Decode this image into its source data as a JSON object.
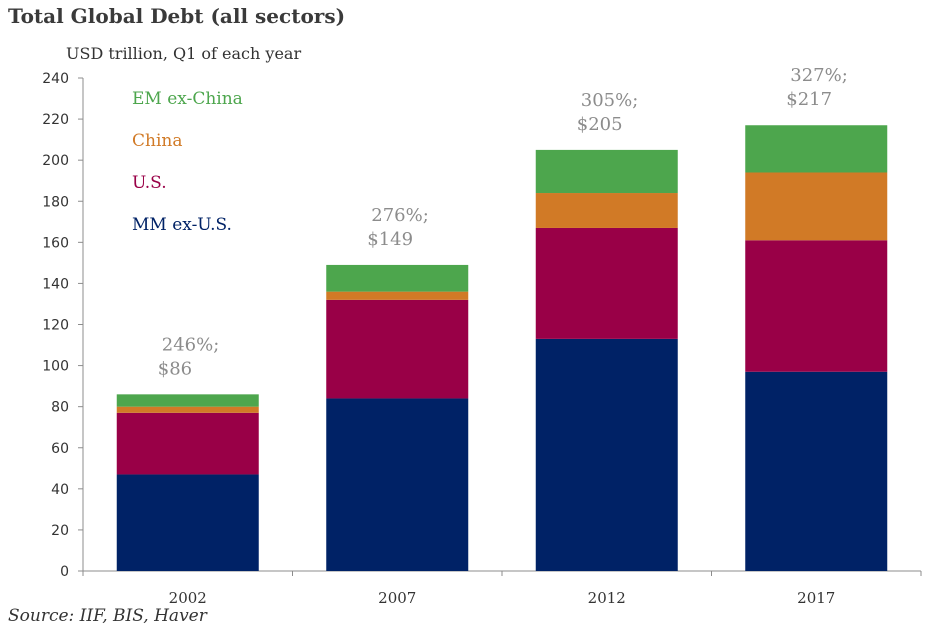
{
  "title": "Total Global Debt (all sectors)",
  "subtitle": "USD trillion, Q1 of each year",
  "source": "Source: IIF, BIS, Haver",
  "chart_data": {
    "type": "bar",
    "stacked": true,
    "categories": [
      "2002",
      "2007",
      "2012",
      "2017"
    ],
    "series": [
      {
        "name": "MM ex-U.S.",
        "color": "#002266",
        "values": [
          47,
          84,
          113,
          97
        ]
      },
      {
        "name": "U.S.",
        "color": "#990047",
        "values": [
          30,
          48,
          54,
          64
        ]
      },
      {
        "name": "China",
        "color": "#d17a26",
        "values": [
          3,
          4,
          17,
          33
        ]
      },
      {
        "name": "EM ex-China",
        "color": "#4da64d",
        "values": [
          6,
          13,
          21,
          23
        ]
      }
    ],
    "totals_labels": [
      {
        "pct": "246%;",
        "amount": "$86",
        "total": 86
      },
      {
        "pct": "276%;",
        "amount": "$149",
        "total": 149
      },
      {
        "pct": "305%;",
        "amount": "$205",
        "total": 205
      },
      {
        "pct": "327%;",
        "amount": "$217",
        "total": 217
      }
    ],
    "yticks": [
      "0",
      "20",
      "40",
      "60",
      "80",
      "100",
      "120",
      "140",
      "160",
      "180",
      "200",
      "220",
      "240"
    ],
    "ylim": [
      0,
      240
    ],
    "legend": {
      "placement": "top-left",
      "order": [
        "EM ex-China",
        "China",
        "U.S.",
        "MM ex-U.S."
      ]
    },
    "grid": false
  }
}
